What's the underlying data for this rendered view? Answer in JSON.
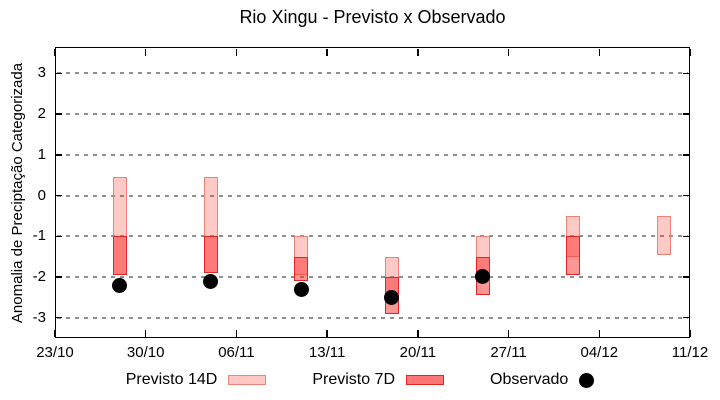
{
  "title": "Rio Xingu - Previsto x Observado",
  "y_axis_label": "Anomalia de Preciptação Categorizada",
  "legend": {
    "items": [
      {
        "label": "Previsto 14D",
        "marker": "box",
        "fill": "#ffc8c5",
        "border": "#ee8277"
      },
      {
        "label": "Previsto 7D",
        "marker": "box",
        "fill": "#ff7676",
        "border": "#e4241e"
      },
      {
        "label": "Observado",
        "marker": "dot",
        "fill": "#000000"
      }
    ]
  },
  "colors": {
    "forecast14_fill": "rgba(255,60,50,0.28)",
    "forecast14_border": "#ee8277",
    "forecast7_fill": "rgba(255,45,45,0.5)",
    "forecast7_border": "#e4241e",
    "observed": "#000000",
    "gridline": "#8f8f8f",
    "axis": "#000000"
  },
  "chart_data": {
    "type": "bar",
    "subtype": "forecast-range-bars-with-observed-points",
    "title": "Rio Xingu - Previsto x Observado",
    "xlabel": "",
    "ylabel": "Anomalia de Preciptação Categorizada",
    "ylim": [
      -3.5,
      3.65
    ],
    "yticks": [
      3,
      2,
      1,
      0,
      -1,
      -2,
      -3
    ],
    "x_tick_labels": [
      "23/10",
      "30/10",
      "06/11",
      "13/11",
      "20/11",
      "27/11",
      "04/12",
      "11/12"
    ],
    "x_tick_days": [
      0,
      7,
      14,
      21,
      28,
      35,
      42,
      49
    ],
    "x_range_days": [
      0,
      49
    ],
    "grid": "horizontal dashed gridlines at integer y values, mirrored inward axis ticks",
    "legend_position": "below plot, horizontal",
    "series": [
      {
        "name": "Previsto 14D",
        "type": "range-bar",
        "bars": [
          {
            "x_day": 5,
            "high": 0.45,
            "low": -1.95
          },
          {
            "x_day": 12,
            "high": 0.45,
            "low": -1.9
          },
          {
            "x_day": 19,
            "high": -1.0,
            "low": -1.95
          },
          {
            "x_day": 26,
            "high": -1.5,
            "low": -2.5
          },
          {
            "x_day": 33,
            "high": -1.0,
            "low": -2.0
          },
          {
            "x_day": 40,
            "high": -0.5,
            "low": -1.5
          },
          {
            "x_day": 47,
            "high": -0.5,
            "low": -1.45
          }
        ]
      },
      {
        "name": "Previsto 7D",
        "type": "range-bar",
        "bars": [
          {
            "x_day": 5,
            "high": -1.0,
            "low": -1.95
          },
          {
            "x_day": 12,
            "high": -1.0,
            "low": -1.9
          },
          {
            "x_day": 19,
            "high": -1.5,
            "low": -2.1
          },
          {
            "x_day": 26,
            "high": -2.0,
            "low": -2.9
          },
          {
            "x_day": 33,
            "high": -1.5,
            "low": -2.45
          },
          {
            "x_day": 40,
            "high": -1.0,
            "low": -1.95
          }
        ]
      },
      {
        "name": "Observado",
        "type": "scatter",
        "points": [
          {
            "x_day": 5,
            "y": -2.2
          },
          {
            "x_day": 12,
            "y": -2.1
          },
          {
            "x_day": 19,
            "y": -2.3
          },
          {
            "x_day": 26,
            "y": -2.5
          },
          {
            "x_day": 33,
            "y": -2.0
          }
        ]
      }
    ]
  }
}
